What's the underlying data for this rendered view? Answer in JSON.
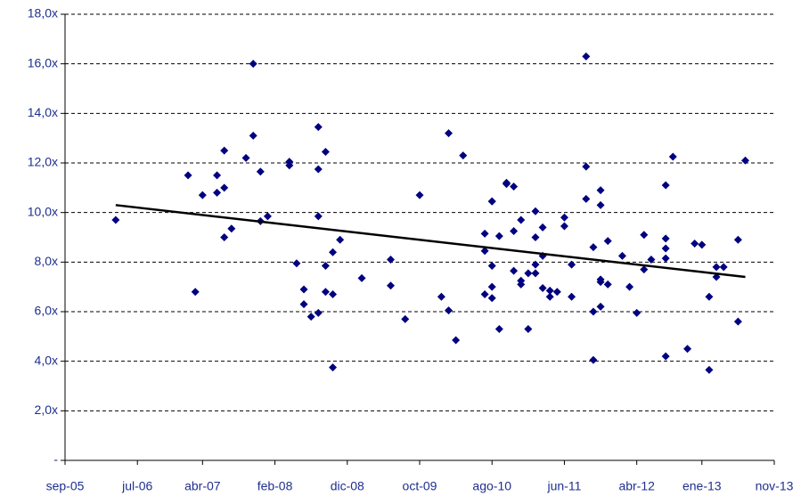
{
  "chart_data": {
    "type": "scatter",
    "marker_color": "#000080",
    "x": [
      "2006-04",
      "2007-02",
      "2007-03",
      "2007-04",
      "2007-06",
      "2007-06",
      "2007-07",
      "2007-07",
      "2007-07",
      "2007-08",
      "2007-10",
      "2007-11",
      "2007-11",
      "2007-12",
      "2007-12",
      "2008-01",
      "2008-04",
      "2008-04",
      "2008-05",
      "2008-06",
      "2008-06",
      "2008-07",
      "2008-08",
      "2008-08",
      "2008-08",
      "2008-08",
      "2008-09",
      "2008-09",
      "2008-09",
      "2008-10",
      "2008-10",
      "2008-11",
      "2008-10",
      "2009-02",
      "2009-06",
      "2009-06",
      "2009-08",
      "2009-10",
      "2010-01",
      "2010-02",
      "2010-02",
      "2010-03",
      "2010-04",
      "2010-07",
      "2010-07",
      "2010-07",
      "2010-08",
      "2010-08",
      "2010-08",
      "2010-08",
      "2010-08",
      "2010-09",
      "2010-09",
      "2010-10",
      "2010-10",
      "2010-11",
      "2010-11",
      "2010-11",
      "2010-12",
      "2010-12",
      "2010-12",
      "2011-01",
      "2011-01",
      "2011-02",
      "2011-02",
      "2011-02",
      "2011-02",
      "2011-03",
      "2011-03",
      "2011-03",
      "2011-04",
      "2011-04",
      "2011-05",
      "2011-06",
      "2011-06",
      "2011-07",
      "2011-07",
      "2011-09",
      "2011-09",
      "2011-09",
      "2011-10",
      "2011-10",
      "2011-10",
      "2011-11",
      "2011-11",
      "2011-11",
      "2011-11",
      "2011-11",
      "2011-12",
      "2011-12",
      "2012-02",
      "2012-03",
      "2012-04",
      "2012-05",
      "2012-05",
      "2012-06",
      "2012-08",
      "2012-08",
      "2012-08",
      "2012-08",
      "2012-08",
      "2012-09",
      "2012-11",
      "2012-12",
      "2013-01",
      "2013-02",
      "2013-02",
      "2013-03",
      "2013-03",
      "2013-04",
      "2013-06",
      "2013-06",
      "2013-07"
    ],
    "values": [
      9.7,
      11.5,
      6.8,
      10.7,
      11.5,
      10.8,
      11.0,
      12.5,
      9.0,
      9.35,
      12.2,
      16.0,
      13.1,
      11.65,
      9.65,
      9.85,
      12.05,
      11.9,
      7.95,
      6.9,
      6.3,
      5.8,
      13.45,
      11.75,
      9.85,
      5.95,
      7.85,
      12.45,
      6.8,
      8.4,
      6.7,
      8.9,
      3.75,
      7.35,
      8.1,
      7.05,
      5.7,
      10.7,
      6.6,
      6.05,
      13.2,
      4.85,
      12.3,
      6.7,
      9.15,
      8.45,
      10.45,
      10.45,
      7.85,
      6.55,
      7.0,
      9.05,
      5.3,
      11.15,
      11.2,
      11.05,
      9.25,
      7.65,
      9.7,
      7.1,
      7.25,
      7.55,
      5.3,
      10.05,
      7.55,
      9.0,
      7.9,
      9.4,
      8.25,
      6.95,
      6.85,
      6.6,
      6.8,
      9.8,
      9.45,
      7.9,
      6.6,
      11.85,
      10.55,
      16.3,
      4.05,
      8.6,
      6.0,
      10.9,
      10.3,
      7.2,
      6.2,
      7.3,
      7.1,
      8.85,
      8.25,
      7.0,
      5.95,
      9.1,
      7.7,
      8.1,
      8.55,
      4.2,
      11.1,
      8.95,
      8.15,
      12.25,
      4.5,
      8.75,
      8.7,
      6.6,
      3.65,
      7.8,
      7.4,
      7.8,
      5.6,
      8.9,
      12.1
    ],
    "trendline": {
      "x": [
        "2006-04",
        "2013-07"
      ],
      "values": [
        10.3,
        7.4
      ],
      "color": "#000000"
    },
    "xlim": [
      "2005-09",
      "2013-11"
    ],
    "xticks": [
      {
        "value": "2005-09",
        "label": "sep-05"
      },
      {
        "value": "2006-07",
        "label": "jul-06"
      },
      {
        "value": "2007-04",
        "label": "abr-07"
      },
      {
        "value": "2008-02",
        "label": "feb-08"
      },
      {
        "value": "2008-12",
        "label": "dic-08"
      },
      {
        "value": "2009-10",
        "label": "oct-09"
      },
      {
        "value": "2010-08",
        "label": "ago-10"
      },
      {
        "value": "2011-06",
        "label": "jun-11"
      },
      {
        "value": "2012-04",
        "label": "abr-12"
      },
      {
        "value": "2013-01",
        "label": "ene-13"
      },
      {
        "value": "2013-11",
        "label": "nov-13"
      }
    ],
    "ylim": [
      0,
      18
    ],
    "yticks": [
      {
        "value": 0,
        "label": "-"
      },
      {
        "value": 2,
        "label": "2,0x"
      },
      {
        "value": 4,
        "label": "4,0x"
      },
      {
        "value": 6,
        "label": "6,0x"
      },
      {
        "value": 8,
        "label": "8,0x"
      },
      {
        "value": 10,
        "label": "10,0x"
      },
      {
        "value": 12,
        "label": "12,0x"
      },
      {
        "value": 14,
        "label": "14,0x"
      },
      {
        "value": 16,
        "label": "16,0x"
      },
      {
        "value": 18,
        "label": "18,0x"
      }
    ],
    "grid": true
  }
}
